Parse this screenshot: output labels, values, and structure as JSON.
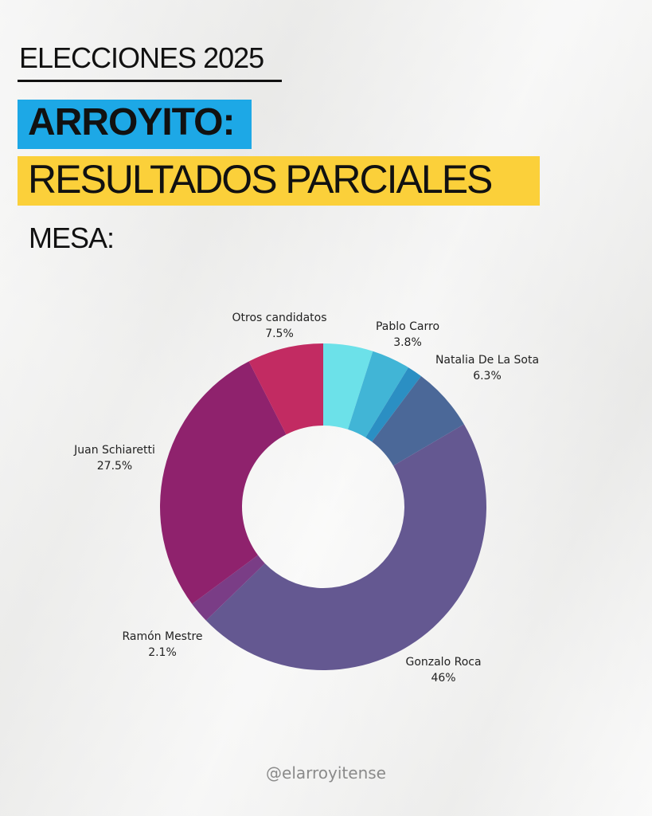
{
  "header": {
    "kicker": "ELECCIONES 2025",
    "title": "ARROYITO:",
    "subtitle": "RESULTADOS PARCIALES",
    "mesa_label": "MESA:"
  },
  "colors": {
    "title_bg": "#1da8e6",
    "subtitle_bg": "#fbd03a"
  },
  "chart_data": {
    "type": "pie",
    "donut": true,
    "slices": [
      {
        "name": "",
        "value": 4.9,
        "color": "#6ce1e9",
        "labeled": false
      },
      {
        "name": "Pablo Carro",
        "value": 3.8,
        "display": "3.8%",
        "color": "#41b5d6",
        "labeled": true
      },
      {
        "name": "",
        "value": 1.5,
        "color": "#2b8fc3",
        "labeled": false
      },
      {
        "name": "Natalia De La Sota",
        "value": 6.3,
        "display": "6.3%",
        "color": "#4b6898",
        "labeled": true
      },
      {
        "name": "Gonzalo Roca",
        "value": 46,
        "display": "46%",
        "color": "#645891",
        "labeled": true
      },
      {
        "name": "Ramón Mestre",
        "value": 2.1,
        "display": "2.1%",
        "color": "#7a3d86",
        "labeled": true
      },
      {
        "name": "Juan Schiaretti",
        "value": 27.5,
        "display": "27.5%",
        "color": "#8f226d",
        "labeled": true
      },
      {
        "name": "Otros candidatos",
        "value": 7.5,
        "display": "7.5%",
        "color": "#c22b62",
        "labeled": true
      }
    ]
  },
  "footer": {
    "handle": "@elarroyitense"
  }
}
